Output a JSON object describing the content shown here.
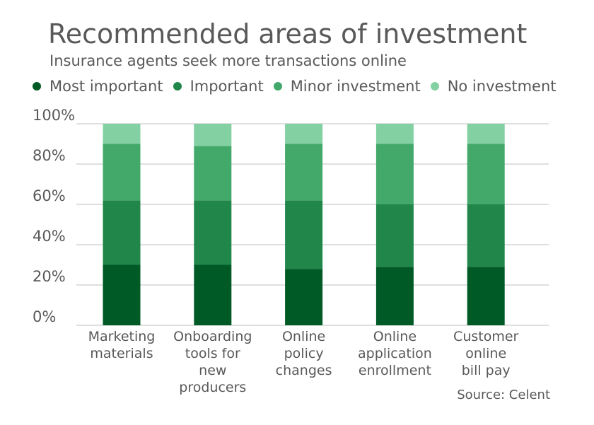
{
  "source": "Source: Celent",
  "chart_data": {
    "type": "bar",
    "stacked": true,
    "percent_stacked": true,
    "title": "Recommended areas of investment",
    "subtitle": "Insurance agents seek more transactions online",
    "ylim": [
      0,
      100
    ],
    "yticks": [
      "0%",
      "20%",
      "40%",
      "60%",
      "80%",
      "100%"
    ],
    "legend_position": "top-left",
    "grid": true,
    "categories": [
      [
        "Marketing",
        "materials"
      ],
      [
        "Onboarding",
        "tools for",
        "new",
        "producers"
      ],
      [
        "Online",
        "policy",
        "changes"
      ],
      [
        "Online",
        "application",
        "enrollment"
      ],
      [
        "Customer",
        "online",
        "bill pay"
      ]
    ],
    "series": [
      {
        "name": "Most important",
        "color": "#005a26",
        "values": [
          30,
          30,
          28,
          29,
          29
        ]
      },
      {
        "name": "Important",
        "color": "#20864a",
        "values": [
          32,
          32,
          34,
          31,
          31
        ]
      },
      {
        "name": "Minor investment",
        "color": "#43a96b",
        "values": [
          28,
          27,
          28,
          30,
          30
        ]
      },
      {
        "name": "No investment",
        "color": "#83d0a2",
        "values": [
          10,
          11,
          10,
          10,
          10
        ]
      }
    ]
  }
}
